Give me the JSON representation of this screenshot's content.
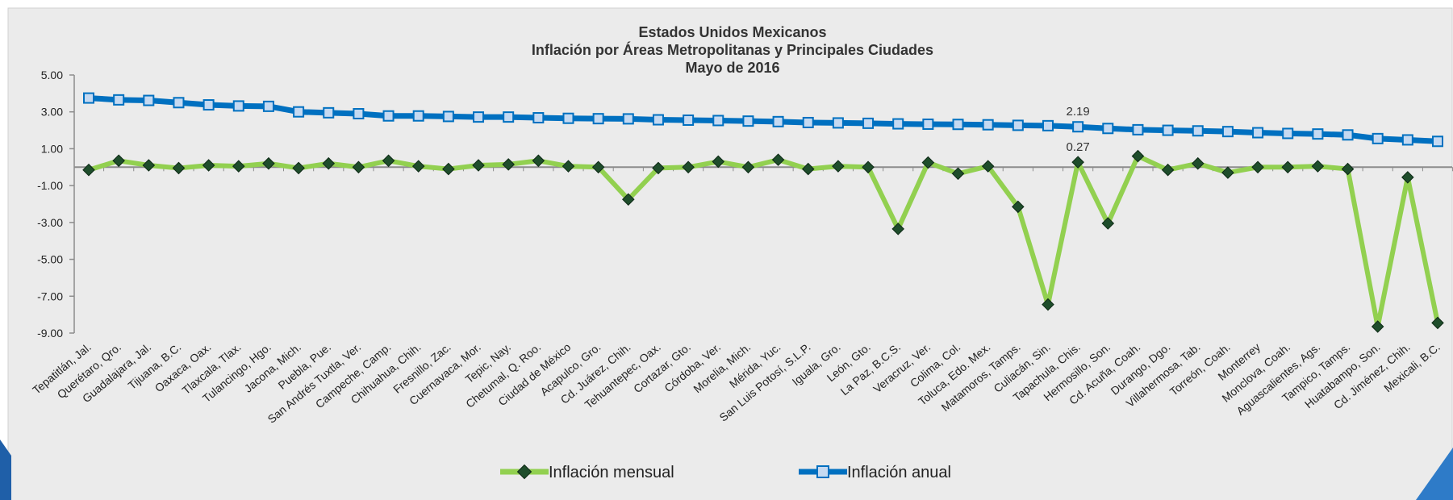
{
  "chart_data": {
    "type": "line",
    "title": [
      "Estados Unidos Mexicanos",
      "Inflación por Áreas Metropolitanas y Principales Ciudades",
      "Mayo de 2016"
    ],
    "xlabel": "",
    "ylabel": "",
    "ylim": [
      -9,
      5
    ],
    "yticks": [
      "5.00",
      "3.00",
      "1.00",
      "-1.00",
      "-3.00",
      "-5.00",
      "-7.00",
      "-9.00"
    ],
    "grid": false,
    "legend_position": "bottom",
    "categories": [
      "Tepatitlán, Jal.",
      "Querétaro, Qro.",
      "Guadalajara, Jal.",
      "Tijuana, B.C.",
      "Oaxaca, Oax.",
      "Tlaxcala, Tlax.",
      "Tulancingo, Hgo.",
      "Jacona, Mich.",
      "Puebla, Pue.",
      "San Andrés Tuxtla, Ver.",
      "Campeche, Camp.",
      "Chihuahua, Chih.",
      "Fresnillo, Zac.",
      "Cuernavaca, Mor.",
      "Tepic, Nay.",
      "Chetumal, Q. Roo.",
      "Ciudad de México",
      "Acapulco, Gro.",
      "Cd. Juárez, Chih.",
      "Tehuantepec, Oax.",
      "Cortazar, Gto.",
      "Córdoba, Ver.",
      "Morelia, Mich.",
      "Mérida, Yuc.",
      "San Luis Potosí, S.L.P.",
      "Iguala, Gro.",
      "León, Gto.",
      "La Paz, B.C.S.",
      "Veracruz, Ver.",
      "Colima, Col.",
      "Toluca, Edo. Mex.",
      "Matamoros, Tamps.",
      "Culiacán, Sin.",
      "Tapachula, Chis.",
      "Hermosillo, Son.",
      "Cd. Acuña, Coah.",
      "Durango, Dgo.",
      "Villahermosa, Tab.",
      "Torreón, Coah.",
      "Monterrey",
      "Monclova, Coah.",
      "Aguascalientes, Ags.",
      "Tampico, Tamps.",
      "Huatabampo, Son.",
      "Cd. Jiménez, Chih.",
      "Mexicali, B.C."
    ],
    "series": [
      {
        "name": "Inflación mensual",
        "color": "#92D050",
        "marker_color": "#1E4D2B",
        "values": [
          -0.15,
          0.35,
          0.1,
          -0.05,
          0.1,
          0.05,
          0.2,
          -0.05,
          0.2,
          0.0,
          0.35,
          0.05,
          -0.1,
          0.1,
          0.15,
          0.35,
          0.05,
          0.0,
          -1.75,
          -0.05,
          0.0,
          0.3,
          0.0,
          0.4,
          -0.1,
          0.05,
          0.0,
          -3.35,
          0.25,
          -0.35,
          0.05,
          -2.15,
          -7.45,
          0.27,
          -3.05,
          0.6,
          -0.15,
          0.2,
          -0.3,
          0.0,
          0.0,
          0.05,
          -0.1,
          -8.65,
          -0.55,
          -8.45
        ]
      },
      {
        "name": "Inflación anual",
        "color": "#0070C0",
        "marker_color": "#C5D9F1",
        "values": [
          3.75,
          3.65,
          3.62,
          3.5,
          3.38,
          3.32,
          3.3,
          3.0,
          2.95,
          2.9,
          2.78,
          2.78,
          2.75,
          2.72,
          2.72,
          2.68,
          2.65,
          2.63,
          2.62,
          2.57,
          2.55,
          2.53,
          2.5,
          2.47,
          2.42,
          2.4,
          2.38,
          2.35,
          2.33,
          2.32,
          2.3,
          2.27,
          2.25,
          2.19,
          2.1,
          2.03,
          2.0,
          1.97,
          1.93,
          1.87,
          1.83,
          1.8,
          1.75,
          1.55,
          1.48,
          1.4
        ]
      }
    ],
    "data_labels": [
      {
        "series": 1,
        "index": 33,
        "text": "2.19"
      },
      {
        "series": 0,
        "index": 33,
        "text": "0.27"
      }
    ]
  }
}
